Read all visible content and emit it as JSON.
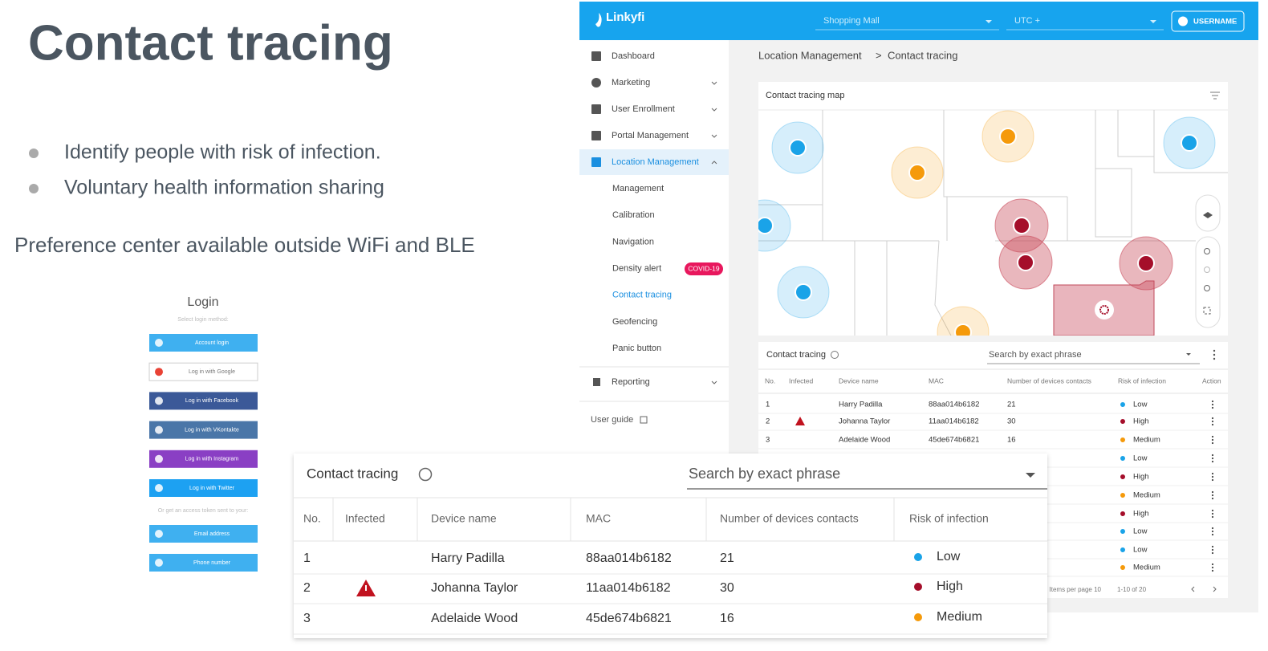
{
  "slide": {
    "title": "Contact tracing",
    "bullets": [
      "Identify people with risk of infection.",
      "Voluntary health information sharing"
    ],
    "subtitle": "Preference center available outside WiFi and BLE"
  },
  "login": {
    "title": "Login",
    "hint": "Select login method:",
    "buttons": [
      {
        "label": "Account login",
        "color": "#3fb0f0"
      },
      {
        "label": "Log in with Google",
        "color": "#ffffff"
      },
      {
        "label": "Log in with Facebook",
        "color": "#3b5998"
      },
      {
        "label": "Log in with VKontakte",
        "color": "#4a76a8"
      },
      {
        "label": "Log in with Instagram",
        "color": "#8a3fc4"
      },
      {
        "label": "Log in with Twitter",
        "color": "#1da1f2"
      }
    ],
    "divider": "Or get an access token sent to your:",
    "extra_buttons": [
      {
        "label": "Email address",
        "color": "#3fb0f0"
      },
      {
        "label": "Phone number",
        "color": "#3fb0f0"
      }
    ]
  },
  "app": {
    "brand": "Linkyfi",
    "venue": "Shopping Mall",
    "timezone": "UTC +",
    "user": "USERNAME",
    "sidebar": {
      "items": [
        "Dashboard",
        "Marketing",
        "User Enrollment",
        "Portal Management",
        "Location Management"
      ],
      "sub_items": [
        "Management",
        "Calibration",
        "Navigation",
        "Density alert",
        "Contact tracing",
        "Geofencing",
        "Panic button"
      ],
      "badge": "COVID-19",
      "bottom_items": [
        "Reporting"
      ],
      "guide": "User guide"
    },
    "breadcrumb": {
      "parent": "Location Management",
      "separator": ">",
      "current": "Contact tracing"
    },
    "map_title": "Contact tracing map",
    "table": {
      "title": "Contact tracing",
      "search": "Search by exact phrase",
      "headers": [
        "No.",
        "Infected",
        "Device name",
        "MAC",
        "Number of devices contacts",
        "Risk of infection",
        "Action"
      ],
      "rows": [
        {
          "no": 1,
          "infected": false,
          "name": "Harry Padilla",
          "mac": "88aa014b6182",
          "contacts": 21,
          "risk": "Low",
          "risk_color": "#1aa3e8"
        },
        {
          "no": 2,
          "infected": true,
          "name": "Johanna Taylor",
          "mac": "11aa014b6182",
          "contacts": 30,
          "risk": "High",
          "risk_color": "#a50e2a"
        },
        {
          "no": 3,
          "infected": false,
          "name": "Adelaide Wood",
          "mac": "45de674b6821",
          "contacts": 16,
          "risk": "Medium",
          "risk_color": "#f59a0b"
        },
        {
          "risk": "Low",
          "risk_color": "#1aa3e8"
        },
        {
          "risk": "High",
          "risk_color": "#a50e2a"
        },
        {
          "risk": "Medium",
          "risk_color": "#f59a0b"
        },
        {
          "risk": "High",
          "risk_color": "#a50e2a"
        },
        {
          "risk": "Low",
          "risk_color": "#1aa3e8"
        },
        {
          "risk": "Low",
          "risk_color": "#1aa3e8"
        },
        {
          "risk": "Medium",
          "risk_color": "#f59a0b"
        }
      ],
      "per_page": "Items per page 10",
      "range": "1-10 of 20"
    }
  },
  "zoom_table": {
    "title": "Contact tracing",
    "search": "Search by exact phrase",
    "headers": [
      "No.",
      "Infected",
      "Device name",
      "MAC",
      "Number of devices contacts",
      "Risk of infection"
    ],
    "rows": [
      {
        "no": 1,
        "infected": false,
        "name": "Harry Padilla",
        "mac": "88aa014b6182",
        "contacts": 21,
        "risk": "Low",
        "risk_color": "#1aa3e8"
      },
      {
        "no": 2,
        "infected": true,
        "name": "Johanna Taylor",
        "mac": "11aa014b6182",
        "contacts": 30,
        "risk": "High",
        "risk_color": "#a50e2a"
      },
      {
        "no": 3,
        "infected": false,
        "name": "Adelaide Wood",
        "mac": "45de674b6821",
        "contacts": 16,
        "risk": "Medium",
        "risk_color": "#f59a0b"
      }
    ]
  }
}
